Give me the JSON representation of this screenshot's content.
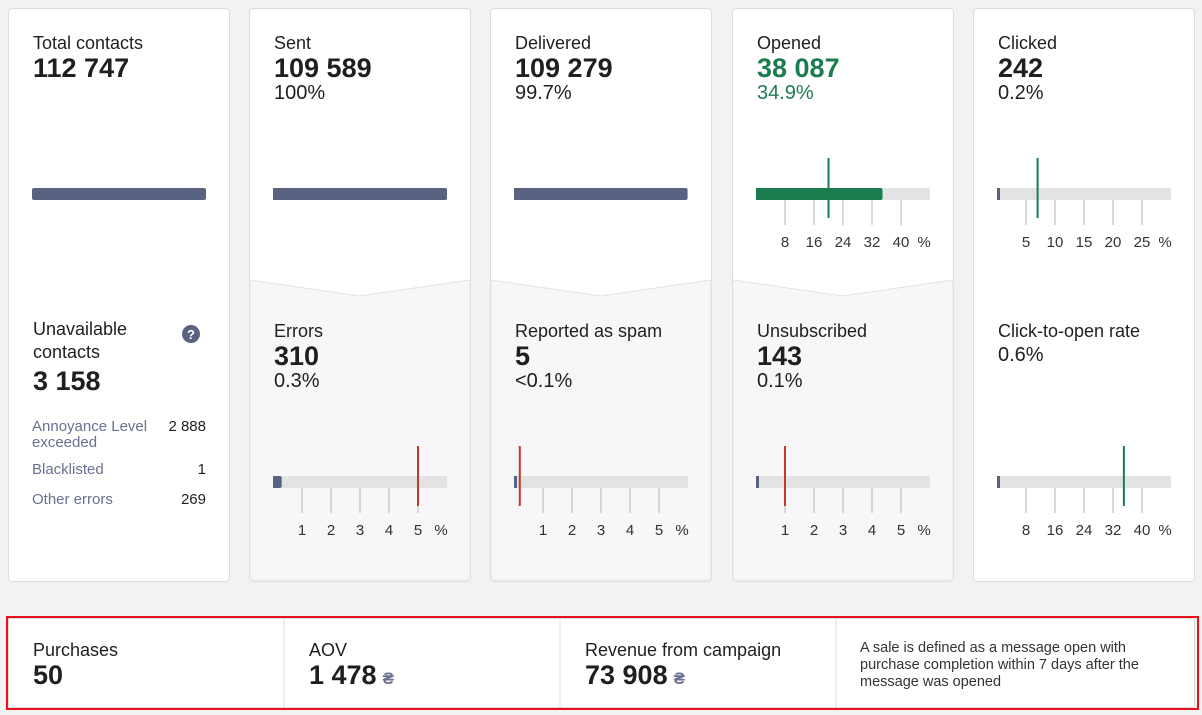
{
  "cards": [
    {
      "top": {
        "label": "Total contacts",
        "value": "112 747"
      },
      "bottom": {
        "label": "Unavailable contacts",
        "help": "?",
        "value": "3 158",
        "breakdown": [
          {
            "label": "Annoyance Level exceeded",
            "value": "2 888"
          },
          {
            "label": "Blacklisted",
            "value": "1"
          },
          {
            "label": "Other errors",
            "value": "269"
          }
        ]
      }
    },
    {
      "top": {
        "label": "Sent",
        "value": "109 589",
        "percent": "100%",
        "gauge": {
          "value": 100,
          "xlim": [
            0,
            100
          ],
          "fill": "#5a6282"
        }
      },
      "bottom": {
        "label": "Errors",
        "value": "310",
        "percent": "0.3%",
        "gauge": {
          "value": 0.3,
          "benchmark": 5,
          "xlim": [
            0,
            6
          ],
          "ticks": [
            1,
            2,
            3,
            4,
            5
          ],
          "unit": "%",
          "fill": "#5a6282",
          "marker_color": "#c0392b"
        }
      }
    },
    {
      "top": {
        "label": "Delivered",
        "value": "109 279",
        "percent": "99.7%",
        "gauge": {
          "value": 99.7,
          "xlim": [
            0,
            100
          ],
          "fill": "#5a6282"
        }
      },
      "bottom": {
        "label": "Reported as spam",
        "value": "5",
        "percent": "<0.1%",
        "gauge": {
          "value": 0.0046,
          "benchmark": 0.2,
          "xlim": [
            0,
            6
          ],
          "ticks": [
            1,
            2,
            3,
            4,
            5
          ],
          "unit": "%",
          "fill": "#5a6282",
          "marker_color": "#c0392b"
        }
      }
    },
    {
      "top": {
        "label": "Opened",
        "value": "38 087",
        "percent": "34.9%",
        "color": "#1b7d4f",
        "gauge": {
          "value": 34.9,
          "benchmark": 20,
          "xlim": [
            0,
            48
          ],
          "ticks": [
            8,
            16,
            24,
            32,
            40
          ],
          "unit": "%",
          "fill": "#1b7d4f",
          "marker_color": "#1b7d4f"
        }
      },
      "bottom": {
        "label": "Unsubscribed",
        "value": "143",
        "percent": "0.1%",
        "gauge": {
          "value": 0.1,
          "benchmark": 1,
          "xlim": [
            0,
            6
          ],
          "ticks": [
            1,
            2,
            3,
            4,
            5
          ],
          "unit": "%",
          "fill": "#5a6282",
          "marker_color": "#c0392b"
        }
      }
    },
    {
      "top": {
        "label": "Clicked",
        "value": "242",
        "percent": "0.2%",
        "gauge": {
          "value": 0.2,
          "benchmark": 7,
          "xlim": [
            0,
            30
          ],
          "ticks": [
            5,
            10,
            15,
            20,
            25
          ],
          "unit": "%",
          "fill": "#5a6282",
          "marker_color": "#1b7d4f"
        }
      },
      "bottom": {
        "label": "Click-to-open rate",
        "percent": "0.6%",
        "gauge": {
          "value": 0.6,
          "benchmark": 35,
          "xlim": [
            0,
            48
          ],
          "ticks": [
            8,
            16,
            24,
            32,
            40
          ],
          "unit": "%",
          "fill": "#5a6282",
          "marker_color": "#1b7d4f"
        }
      }
    }
  ],
  "summary": {
    "items": [
      {
        "label": "Purchases",
        "value": "50"
      },
      {
        "label": "AOV",
        "value": "1 478",
        "currency": "₴"
      },
      {
        "label": "Revenue from campaign",
        "value": "73 908",
        "currency": "₴"
      }
    ],
    "note": "A sale is defined as a message open with purchase completion within 7 days after the message was opened"
  }
}
